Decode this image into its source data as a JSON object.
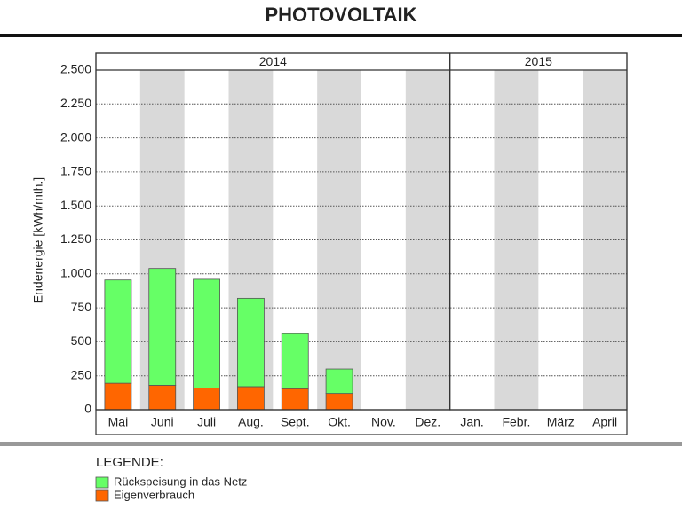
{
  "chart_data": {
    "type": "stacked_bar",
    "title": "PHOTOVOLTAIK",
    "y_label": "Endenergie [kWh/mth.]",
    "categories": [
      "Mai",
      "Juni",
      "Juli",
      "Aug.",
      "Sept.",
      "Okt.",
      "Nov.",
      "Dez.",
      "Jan.",
      "Febr.",
      "März",
      "April"
    ],
    "groups": [
      {
        "label": "2014",
        "count": 8
      },
      {
        "label": "2015",
        "count": 4
      }
    ],
    "series": [
      {
        "name": "Eigenverbrauch",
        "color": "#ff6600",
        "values": [
          195,
          180,
          160,
          170,
          155,
          120,
          null,
          null,
          null,
          null,
          null,
          null
        ]
      },
      {
        "name": "Rückspeisung in das Netz",
        "color": "#66ff66",
        "values": [
          760,
          860,
          800,
          650,
          405,
          180,
          null,
          null,
          null,
          null,
          null,
          null
        ]
      }
    ],
    "ylim": [
      0,
      2500
    ],
    "yticks": [
      0,
      250,
      500,
      750,
      {
        "value": 1000,
        "label": "1.000"
      },
      {
        "value": 1250,
        "label": "1.250"
      },
      {
        "value": 1500,
        "label": "1.500"
      },
      {
        "value": 1750,
        "label": "1.750"
      },
      {
        "value": 2000,
        "label": "2.000"
      },
      {
        "value": 2250,
        "label": "2.250"
      },
      {
        "value": 2500,
        "label": "2.500"
      }
    ],
    "grid": true,
    "legend_title": "LEGENDE:"
  }
}
